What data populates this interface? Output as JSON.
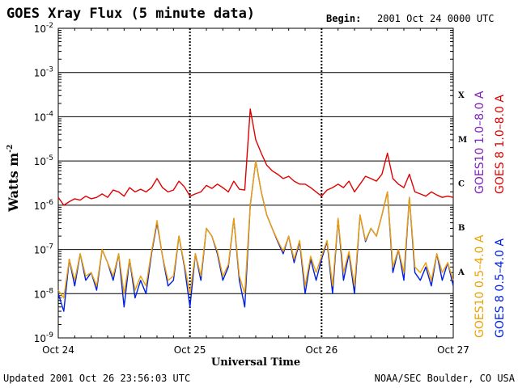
{
  "header": {
    "title": "GOES Xray Flux (5 minute data)",
    "begin_label": "Begin:",
    "begin_value": "2001 Oct 24 0000 UTC"
  },
  "footer": {
    "updated": "Updated 2001 Oct 26 23:56:03 UTC",
    "source": "NOAA/SEC Boulder, CO USA"
  },
  "colors": {
    "goes8_long": "#e00000",
    "goes10_long": "#8020c0",
    "goes8_short": "#0020e0",
    "goes10_short": "#f0a000",
    "grid": "#000000"
  },
  "chart_data": {
    "type": "line",
    "xlabel": "Universal Time",
    "ylabel": "Watts m",
    "ylabel_sup": "-2",
    "y_scale": "log",
    "ylim": [
      1e-09,
      0.01
    ],
    "xlim": [
      "2001-10-24 00:00",
      "2001-10-27 00:00"
    ],
    "x_ticks": [
      "Oct 24",
      "Oct 25",
      "Oct 26",
      "Oct 27"
    ],
    "y_ticks": [
      {
        "base": "10",
        "exp": "-9"
      },
      {
        "base": "10",
        "exp": "-8"
      },
      {
        "base": "10",
        "exp": "-7"
      },
      {
        "base": "10",
        "exp": "-6"
      },
      {
        "base": "10",
        "exp": "-5"
      },
      {
        "base": "10",
        "exp": "-4"
      },
      {
        "base": "10",
        "exp": "-3"
      },
      {
        "base": "10",
        "exp": "-2"
      }
    ],
    "flare_classes": [
      "A",
      "B",
      "C",
      "M",
      "X"
    ],
    "legend": [
      "GOES10 1.0–8.0 A",
      "GOES 8 1.0–8.0 A",
      "GOES10 0.5–4.0 A",
      "GOES 8 0.5–4.0 A"
    ],
    "series": [
      {
        "name": "GOES 8 1.0–8.0 A",
        "color": "#e00000",
        "x_hours": [
          0,
          1,
          2,
          3,
          4,
          5,
          6,
          7,
          8,
          9,
          10,
          11,
          12,
          13,
          14,
          15,
          16,
          17,
          18,
          19,
          20,
          21,
          22,
          23,
          24,
          25,
          26,
          27,
          28,
          29,
          30,
          31,
          32,
          33,
          34,
          35,
          36,
          37,
          38,
          39,
          40,
          41,
          42,
          43,
          44,
          45,
          46,
          47,
          48,
          49,
          50,
          51,
          52,
          53,
          54,
          55,
          56,
          57,
          58,
          59,
          60,
          61,
          62,
          63,
          64,
          65,
          66,
          67,
          68,
          69,
          70,
          71,
          72
        ],
        "values": [
          1.5e-06,
          1e-06,
          1.2e-06,
          1.4e-06,
          1.3e-06,
          1.6e-06,
          1.4e-06,
          1.5e-06,
          1.8e-06,
          1.5e-06,
          2.2e-06,
          2e-06,
          1.6e-06,
          2.5e-06,
          2e-06,
          2.3e-06,
          2e-06,
          2.5e-06,
          4e-06,
          2.5e-06,
          2e-06,
          2.2e-06,
          3.5e-06,
          2.6e-06,
          1.6e-06,
          1.8e-06,
          2e-06,
          2.8e-06,
          2.4e-06,
          3e-06,
          2.5e-06,
          2e-06,
          3.5e-06,
          2.3e-06,
          2.2e-06,
          0.00015,
          3e-05,
          1.5e-05,
          8e-06,
          6e-06,
          5e-06,
          4e-06,
          4.5e-06,
          3.5e-06,
          3e-06,
          3e-06,
          2.5e-06,
          2e-06,
          1.6e-06,
          2.2e-06,
          2.5e-06,
          3e-06,
          2.5e-06,
          3.5e-06,
          2e-06,
          3e-06,
          4.5e-06,
          4e-06,
          3.5e-06,
          5e-06,
          1.5e-05,
          4e-06,
          3e-06,
          2.5e-06,
          5e-06,
          2e-06,
          1.8e-06,
          1.6e-06,
          2e-06,
          1.7e-06,
          1.5e-06,
          1.6e-06,
          1.5e-06
        ]
      },
      {
        "name": "GOES 8 0.5–4.0 A",
        "color": "#0020e0",
        "x_hours": [
          0,
          1,
          2,
          3,
          4,
          5,
          6,
          7,
          8,
          9,
          10,
          11,
          12,
          13,
          14,
          15,
          16,
          17,
          18,
          19,
          20,
          21,
          22,
          23,
          24,
          25,
          26,
          27,
          28,
          29,
          30,
          31,
          32,
          33,
          34,
          35,
          36,
          37,
          38,
          39,
          40,
          41,
          42,
          43,
          44,
          45,
          46,
          47,
          48,
          49,
          50,
          51,
          52,
          53,
          54,
          55,
          56,
          57,
          58,
          59,
          60,
          61,
          62,
          63,
          64,
          65,
          66,
          67,
          68,
          69,
          70,
          71,
          72
        ],
        "values": [
          1e-08,
          4e-09,
          6e-08,
          1.5e-08,
          8e-08,
          2e-08,
          3e-08,
          1.2e-08,
          1e-07,
          5e-08,
          2e-08,
          8e-08,
          5e-09,
          6e-08,
          8e-09,
          2e-08,
          1e-08,
          8e-08,
          4e-07,
          7e-08,
          1.5e-08,
          2e-08,
          2e-07,
          4e-08,
          5e-09,
          8e-08,
          2e-08,
          3e-07,
          2e-07,
          8e-08,
          2e-08,
          4e-08,
          5e-07,
          2e-08,
          5e-09,
          1e-06,
          1e-05,
          2e-06,
          6e-07,
          3e-07,
          1.5e-07,
          8e-08,
          2e-07,
          5e-08,
          1.5e-07,
          1e-08,
          6e-08,
          2e-08,
          6e-08,
          1.5e-07,
          1e-08,
          5e-07,
          2e-08,
          8e-08,
          1e-08,
          6e-07,
          1.5e-07,
          3e-07,
          2e-07,
          6e-07,
          2e-06,
          3e-08,
          1e-07,
          2e-08,
          1.5e-06,
          3e-08,
          2e-08,
          4e-08,
          1.5e-08,
          8e-08,
          2e-08,
          5e-08,
          1.5e-08
        ]
      },
      {
        "name": "GOES10 0.5–4.0 A",
        "color": "#f0a000",
        "x_hours": [
          0,
          1,
          2,
          3,
          4,
          5,
          6,
          7,
          8,
          9,
          10,
          11,
          12,
          13,
          14,
          15,
          16,
          17,
          18,
          19,
          20,
          21,
          22,
          23,
          24,
          25,
          26,
          27,
          28,
          29,
          30,
          31,
          32,
          33,
          34,
          35,
          36,
          37,
          38,
          39,
          40,
          41,
          42,
          43,
          44,
          45,
          46,
          47,
          48,
          49,
          50,
          51,
          52,
          53,
          54,
          55,
          56,
          57,
          58,
          59,
          60,
          61,
          62,
          63,
          64,
          65,
          66,
          67,
          68,
          69,
          70,
          71,
          72
        ],
        "values": [
          1.2e-08,
          8e-09,
          6e-08,
          2e-08,
          8e-08,
          2.5e-08,
          3e-08,
          1.5e-08,
          1e-07,
          5e-08,
          2.5e-08,
          8e-08,
          1e-08,
          6e-08,
          1.2e-08,
          2.5e-08,
          1.5e-08,
          9e-08,
          4.5e-07,
          7e-08,
          2e-08,
          2.5e-08,
          2e-07,
          4.5e-08,
          1e-08,
          8e-08,
          2.5e-08,
          3e-07,
          2e-07,
          9e-08,
          2.5e-08,
          4.5e-08,
          5e-07,
          2.5e-08,
          1e-08,
          1e-06,
          1e-05,
          2e-06,
          6e-07,
          3e-07,
          1.6e-07,
          9e-08,
          2e-07,
          6e-08,
          1.6e-07,
          1.5e-08,
          7e-08,
          3e-08,
          7e-08,
          1.6e-07,
          1.5e-08,
          5e-07,
          3e-08,
          9e-08,
          1.5e-08,
          6e-07,
          1.6e-07,
          3e-07,
          2e-07,
          6e-07,
          2e-06,
          4e-08,
          1e-07,
          3e-08,
          1.5e-06,
          4e-08,
          3e-08,
          5e-08,
          2e-08,
          8e-08,
          3e-08,
          5e-08,
          2e-08
        ]
      }
    ]
  }
}
